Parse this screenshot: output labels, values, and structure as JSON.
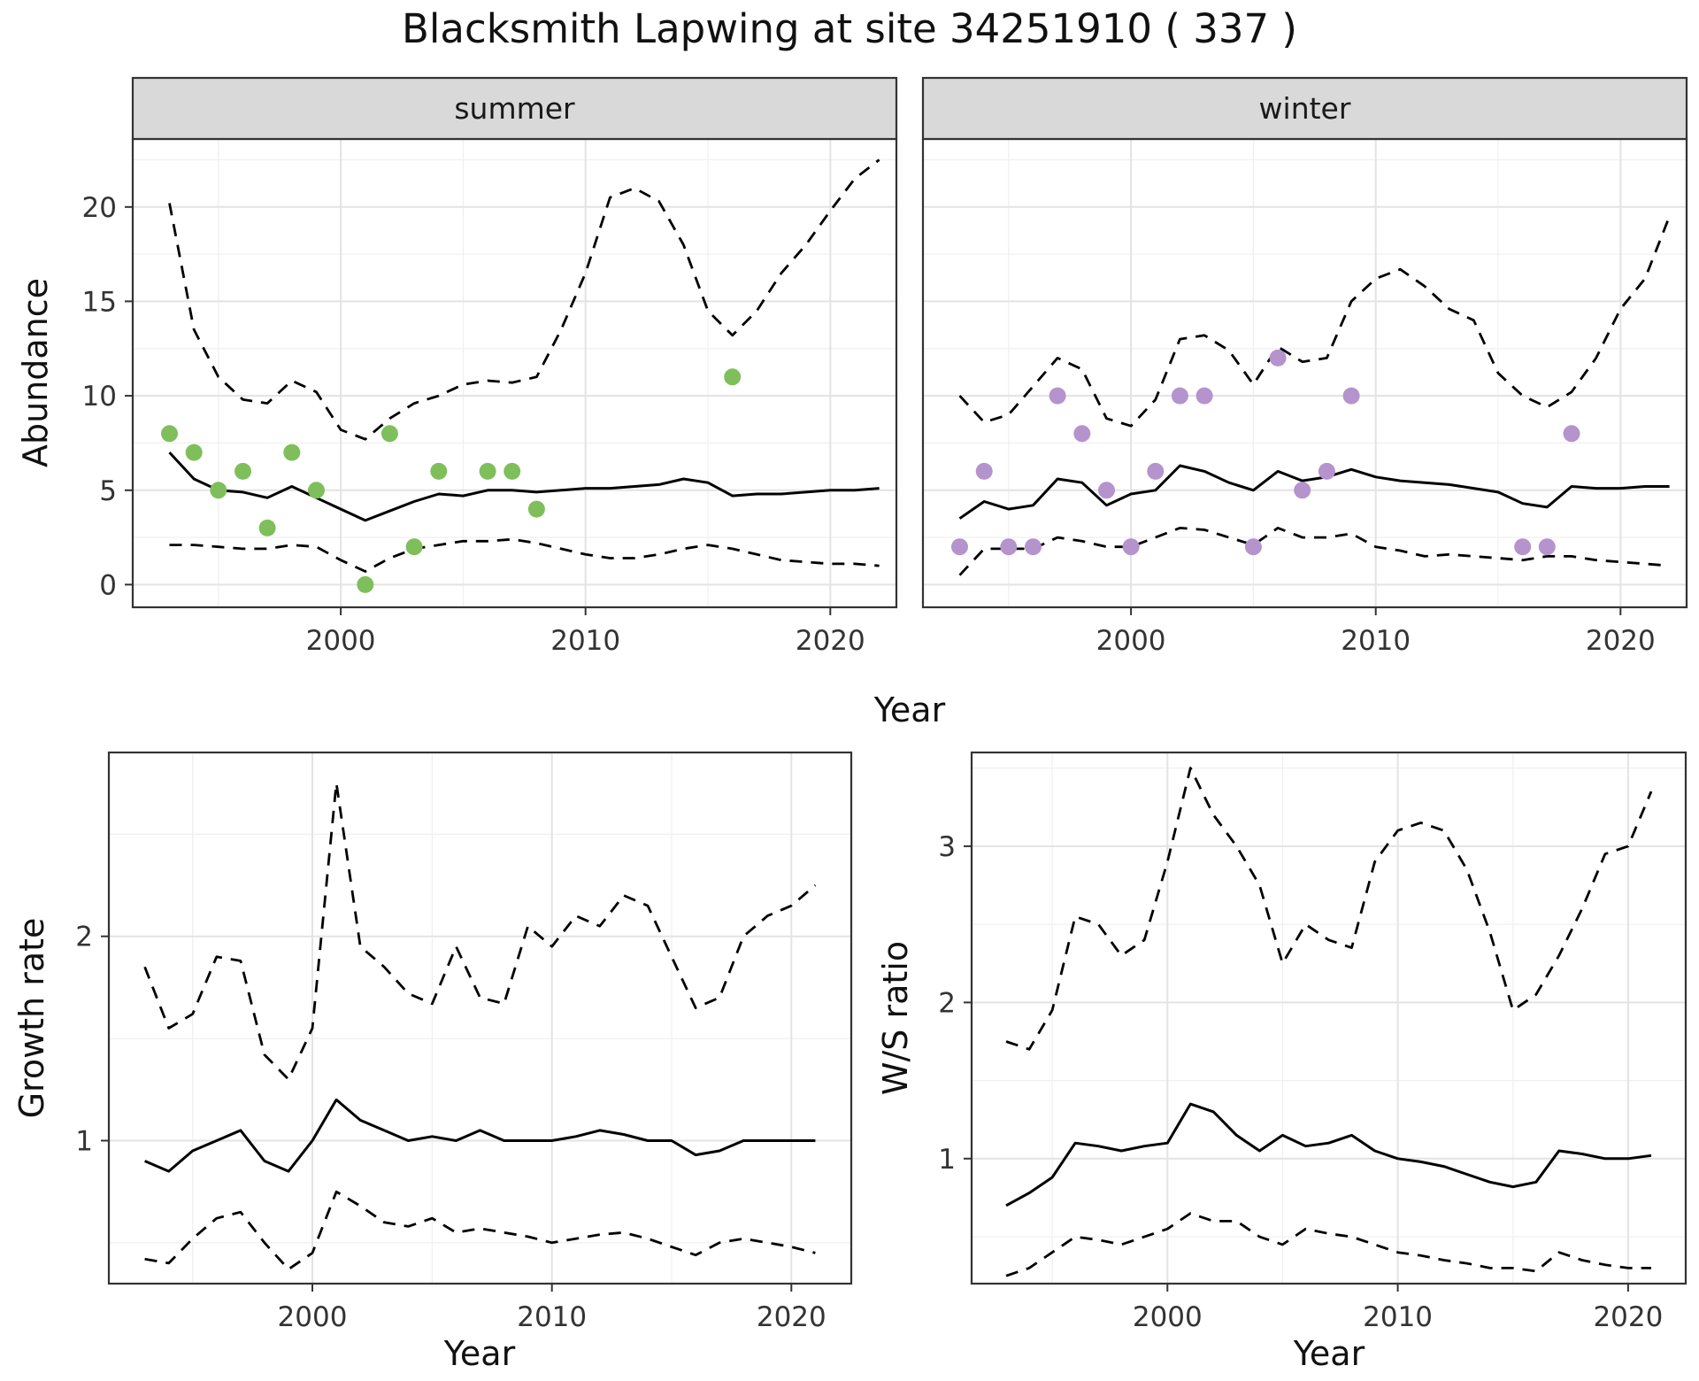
{
  "title": "Blacksmith Lapwing at site 34251910 ( 337 )",
  "colors": {
    "summer_point": "#7fbf5b",
    "winter_point": "#b593cc",
    "line": "#000000",
    "tick": "#333333",
    "panel_border": "#333333",
    "strip_bg": "#d9d9d9",
    "grid_major": "#e3e3e3",
    "grid_minor": "#f0f0f0"
  },
  "chart_data": [
    {
      "id": "abundance",
      "type": "line",
      "xlabel": "Year",
      "ylabel": "Abundance",
      "facets": [
        "summer",
        "winter"
      ],
      "xlim": [
        1991.5,
        2022.7
      ],
      "ylim": [
        -1.2,
        23.6
      ],
      "xticks": [
        2000,
        2010,
        2020
      ],
      "xticks_minor": [
        1995,
        2005,
        2015
      ],
      "yticks": [
        0,
        5,
        10,
        15,
        20
      ],
      "yticks_minor": [
        2.5,
        7.5,
        12.5,
        17.5,
        22.5
      ],
      "panels": [
        {
          "facet": "summer",
          "point_color": "#7fbf5b",
          "years": [
            1993,
            1994,
            1995,
            1996,
            1997,
            1998,
            1999,
            2000,
            2001,
            2002,
            2003,
            2004,
            2005,
            2006,
            2007,
            2008,
            2009,
            2010,
            2011,
            2012,
            2013,
            2014,
            2015,
            2016,
            2017,
            2018,
            2019,
            2020,
            2021,
            2022
          ],
          "fit": [
            7.0,
            5.6,
            5.0,
            4.9,
            4.6,
            5.2,
            4.6,
            4.0,
            3.4,
            3.9,
            4.4,
            4.8,
            4.7,
            5.0,
            5.0,
            4.9,
            5.0,
            5.1,
            5.1,
            5.2,
            5.3,
            5.6,
            5.4,
            4.7,
            4.8,
            4.8,
            4.9,
            5.0,
            5.0,
            5.1
          ],
          "upper_ci": [
            20.2,
            13.5,
            11.0,
            9.8,
            9.6,
            10.8,
            10.2,
            8.2,
            7.7,
            8.8,
            9.6,
            10.0,
            10.6,
            10.8,
            10.7,
            11.0,
            13.5,
            16.5,
            20.5,
            21.0,
            20.3,
            18.0,
            14.5,
            13.2,
            14.5,
            16.5,
            18.0,
            19.8,
            21.5,
            22.5
          ],
          "lower_ci": [
            2.1,
            2.1,
            2.0,
            1.9,
            1.9,
            2.1,
            2.0,
            1.3,
            0.7,
            1.4,
            1.9,
            2.1,
            2.3,
            2.3,
            2.4,
            2.2,
            1.9,
            1.6,
            1.4,
            1.4,
            1.6,
            1.9,
            2.1,
            1.9,
            1.6,
            1.3,
            1.2,
            1.1,
            1.1,
            1.0
          ],
          "observations": [
            [
              1993,
              8
            ],
            [
              1994,
              7
            ],
            [
              1995,
              5
            ],
            [
              1996,
              6
            ],
            [
              1997,
              3
            ],
            [
              1998,
              7
            ],
            [
              1999,
              5
            ],
            [
              2001,
              0
            ],
            [
              2002,
              8
            ],
            [
              2003,
              2
            ],
            [
              2004,
              6
            ],
            [
              2006,
              6
            ],
            [
              2007,
              6
            ],
            [
              2008,
              4
            ],
            [
              2016,
              11
            ]
          ]
        },
        {
          "facet": "winter",
          "point_color": "#b593cc",
          "years": [
            1993,
            1994,
            1995,
            1996,
            1997,
            1998,
            1999,
            2000,
            2001,
            2002,
            2003,
            2004,
            2005,
            2006,
            2007,
            2008,
            2009,
            2010,
            2011,
            2012,
            2013,
            2014,
            2015,
            2016,
            2017,
            2018,
            2019,
            2020,
            2021,
            2022
          ],
          "fit": [
            3.5,
            4.4,
            4.0,
            4.2,
            5.6,
            5.4,
            4.2,
            4.8,
            5.0,
            6.3,
            6.0,
            5.4,
            5.0,
            6.0,
            5.5,
            5.7,
            6.1,
            5.7,
            5.5,
            5.4,
            5.3,
            5.1,
            4.9,
            4.3,
            4.1,
            5.2,
            5.1,
            5.1,
            5.2,
            5.2
          ],
          "upper_ci": [
            10.0,
            8.6,
            9.0,
            10.5,
            12.0,
            11.4,
            8.8,
            8.4,
            9.8,
            13.0,
            13.2,
            12.4,
            10.6,
            12.6,
            11.8,
            12.0,
            15.0,
            16.2,
            16.7,
            15.8,
            14.6,
            14.0,
            11.2,
            10.0,
            9.4,
            10.2,
            12.0,
            14.6,
            16.2,
            19.5
          ],
          "lower_ci": [
            0.5,
            1.9,
            1.9,
            1.9,
            2.5,
            2.3,
            2.0,
            2.0,
            2.5,
            3.0,
            2.9,
            2.5,
            2.1,
            3.0,
            2.5,
            2.5,
            2.7,
            2.0,
            1.8,
            1.5,
            1.6,
            1.5,
            1.4,
            1.3,
            1.5,
            1.5,
            1.3,
            1.2,
            1.1,
            1.0
          ],
          "observations": [
            [
              1993,
              2
            ],
            [
              1994,
              6
            ],
            [
              1995,
              2
            ],
            [
              1996,
              2
            ],
            [
              1997,
              10
            ],
            [
              1998,
              8
            ],
            [
              1999,
              5
            ],
            [
              2000,
              2
            ],
            [
              2001,
              6
            ],
            [
              2002,
              10
            ],
            [
              2003,
              10
            ],
            [
              2005,
              2
            ],
            [
              2006,
              12
            ],
            [
              2007,
              5
            ],
            [
              2008,
              6
            ],
            [
              2009,
              10
            ],
            [
              2016,
              2
            ],
            [
              2017,
              2
            ],
            [
              2018,
              8
            ]
          ]
        }
      ]
    },
    {
      "id": "growth",
      "type": "line",
      "xlabel": "Year",
      "ylabel": "Growth rate",
      "xlim": [
        1991.5,
        2022.5
      ],
      "ylim": [
        0.3,
        2.9
      ],
      "xticks": [
        2000,
        2010,
        2020
      ],
      "xticks_minor": [
        1995,
        2005,
        2015
      ],
      "yticks": [
        1,
        2
      ],
      "yticks_minor": [
        0.5,
        1.5,
        2.5
      ],
      "panels": [
        {
          "years": [
            1993,
            1994,
            1995,
            1996,
            1997,
            1998,
            1999,
            2000,
            2001,
            2002,
            2003,
            2004,
            2005,
            2006,
            2007,
            2008,
            2009,
            2010,
            2011,
            2012,
            2013,
            2014,
            2015,
            2016,
            2017,
            2018,
            2019,
            2020,
            2021
          ],
          "fit": [
            0.9,
            0.85,
            0.95,
            1.0,
            1.05,
            0.9,
            0.85,
            1.0,
            1.2,
            1.1,
            1.05,
            1.0,
            1.02,
            1.0,
            1.05,
            1.0,
            1.0,
            1.0,
            1.02,
            1.05,
            1.03,
            1.0,
            1.0,
            0.93,
            0.95,
            1.0,
            1.0,
            1.0,
            1.0
          ],
          "upper_ci": [
            1.85,
            1.55,
            1.62,
            1.9,
            1.88,
            1.42,
            1.3,
            1.55,
            2.75,
            1.95,
            1.85,
            1.72,
            1.67,
            1.95,
            1.7,
            1.67,
            2.05,
            1.95,
            2.1,
            2.05,
            2.2,
            2.15,
            1.9,
            1.65,
            1.7,
            2.0,
            2.1,
            2.15,
            2.25
          ],
          "lower_ci": [
            0.42,
            0.4,
            0.52,
            0.62,
            0.65,
            0.5,
            0.37,
            0.45,
            0.75,
            0.68,
            0.6,
            0.58,
            0.62,
            0.55,
            0.57,
            0.55,
            0.53,
            0.5,
            0.52,
            0.54,
            0.55,
            0.52,
            0.48,
            0.44,
            0.5,
            0.52,
            0.5,
            0.48,
            0.45
          ]
        }
      ]
    },
    {
      "id": "ratio",
      "type": "line",
      "xlabel": "Year",
      "ylabel": "W/S ratio",
      "xlim": [
        1991.5,
        2022.5
      ],
      "ylim": [
        0.2,
        3.6
      ],
      "xticks": [
        2000,
        2010,
        2020
      ],
      "xticks_minor": [
        1995,
        2005,
        2015
      ],
      "yticks": [
        1,
        2,
        3
      ],
      "yticks_minor": [
        0.5,
        1.5,
        2.5,
        3.5
      ],
      "panels": [
        {
          "years": [
            1993,
            1994,
            1995,
            1996,
            1997,
            1998,
            1999,
            2000,
            2001,
            2002,
            2003,
            2004,
            2005,
            2006,
            2007,
            2008,
            2009,
            2010,
            2011,
            2012,
            2013,
            2014,
            2015,
            2016,
            2017,
            2018,
            2019,
            2020,
            2021
          ],
          "fit": [
            0.7,
            0.78,
            0.88,
            1.1,
            1.08,
            1.05,
            1.08,
            1.1,
            1.35,
            1.3,
            1.15,
            1.05,
            1.15,
            1.08,
            1.1,
            1.15,
            1.05,
            1.0,
            0.98,
            0.95,
            0.9,
            0.85,
            0.82,
            0.85,
            1.05,
            1.03,
            1.0,
            1.0,
            1.02
          ],
          "upper_ci": [
            1.75,
            1.7,
            1.95,
            2.55,
            2.5,
            2.3,
            2.4,
            2.9,
            3.5,
            3.2,
            3.0,
            2.75,
            2.25,
            2.5,
            2.4,
            2.35,
            2.9,
            3.1,
            3.15,
            3.1,
            2.85,
            2.45,
            1.95,
            2.05,
            2.3,
            2.6,
            2.95,
            3.0,
            3.35
          ],
          "lower_ci": [
            0.25,
            0.3,
            0.4,
            0.5,
            0.48,
            0.45,
            0.5,
            0.55,
            0.65,
            0.6,
            0.6,
            0.5,
            0.45,
            0.55,
            0.52,
            0.5,
            0.45,
            0.4,
            0.38,
            0.35,
            0.33,
            0.3,
            0.3,
            0.28,
            0.4,
            0.35,
            0.32,
            0.3,
            0.3
          ]
        }
      ]
    }
  ]
}
